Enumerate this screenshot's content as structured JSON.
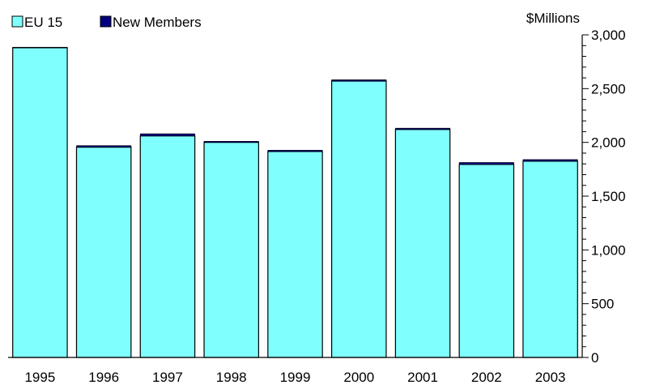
{
  "chart_data": {
    "type": "bar",
    "stacked": true,
    "categories": [
      "1995",
      "1996",
      "1997",
      "1998",
      "1999",
      "2000",
      "2001",
      "2002",
      "2003"
    ],
    "series": [
      {
        "name": "EU 15",
        "color": "#80ffff",
        "values": [
          2880,
          1955,
          2060,
          2000,
          1915,
          2570,
          2120,
          1795,
          1825
        ]
      },
      {
        "name": "New Members",
        "color": "#000080",
        "values": [
          5,
          15,
          20,
          10,
          12,
          12,
          12,
          18,
          15
        ]
      }
    ],
    "ylabel": "$Millions",
    "ylim": [
      0,
      3000
    ],
    "yticks": [
      0,
      500,
      1000,
      1500,
      2000,
      2500,
      3000
    ],
    "ytick_labels": [
      "0",
      "500",
      "1,000",
      "1,500",
      "2,000",
      "2,500",
      "3,000"
    ],
    "y_axis_side": "right",
    "legend_position": "top-left",
    "grid": false
  }
}
